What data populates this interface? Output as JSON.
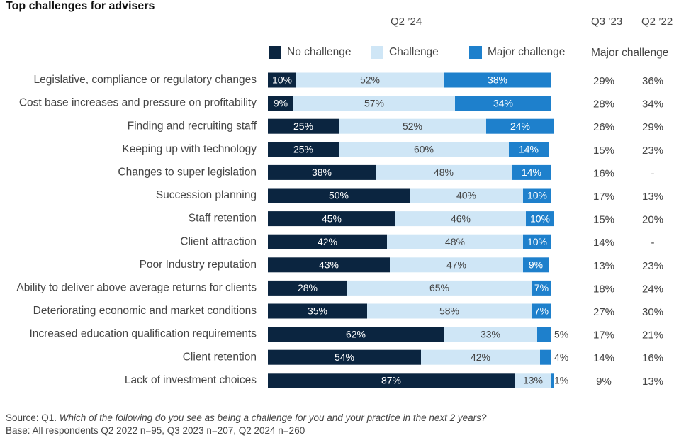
{
  "chart_data": {
    "type": "bar",
    "orientation": "horizontal",
    "stacked": true,
    "title": "Top challenges for advisers",
    "period_header": "Q2 ’24",
    "categories": [
      "Legislative, compliance or regulatory changes",
      "Cost base increases and pressure on profitability",
      "Finding and recruiting staff",
      "Keeping up with technology",
      "Changes to super legislation",
      "Succession planning",
      "Staff retention",
      "Client attraction",
      "Poor Industry reputation",
      "Ability to deliver above average returns for clients",
      "Deteriorating economic and market conditions",
      "Increased education qualification requirements",
      "Client retention",
      "Lack of investment choices"
    ],
    "series": [
      {
        "name": "No challenge",
        "color": "#0b2540",
        "values": [
          10,
          9,
          25,
          25,
          38,
          50,
          45,
          42,
          43,
          28,
          35,
          62,
          54,
          87
        ]
      },
      {
        "name": "Challenge",
        "color": "#cfe6f6",
        "values": [
          52,
          57,
          52,
          60,
          48,
          40,
          46,
          48,
          47,
          65,
          58,
          33,
          42,
          13
        ]
      },
      {
        "name": "Major challenge",
        "color": "#1e80cc",
        "values": [
          38,
          34,
          24,
          14,
          14,
          10,
          10,
          10,
          9,
          7,
          7,
          5,
          4,
          1
        ]
      }
    ],
    "labels": {
      "No challenge": [
        "10%",
        "9%",
        "25%",
        "25%",
        "38%",
        "50%",
        "45%",
        "42%",
        "43%",
        "28%",
        "35%",
        "62%",
        "54%",
        "87%"
      ],
      "Challenge": [
        "52%",
        "57%",
        "52%",
        "60%",
        "48%",
        "40%",
        "46%",
        "48%",
        "47%",
        "65%",
        "58%",
        "33%",
        "42%",
        "13%"
      ],
      "Major challenge": [
        "38%",
        "34%",
        "24%",
        "14%",
        "14%",
        "10%",
        "10%",
        "10%",
        "9%",
        "7%",
        "7%",
        "5%",
        "4%",
        "1%"
      ]
    },
    "comparison_header": "Major challenge",
    "comparison": [
      {
        "name": "Q3 ’23",
        "values": [
          "29%",
          "28%",
          "26%",
          "15%",
          "16%",
          "17%",
          "15%",
          "14%",
          "13%",
          "18%",
          "27%",
          "17%",
          "14%",
          "9%"
        ]
      },
      {
        "name": "Q2 ’22",
        "values": [
          "36%",
          "34%",
          "29%",
          "23%",
          "-",
          "13%",
          "20%",
          "-",
          "23%",
          "24%",
          "30%",
          "21%",
          "16%",
          "13%"
        ]
      }
    ],
    "xlim": [
      0,
      100
    ]
  },
  "footer": {
    "source_prefix": "Source: Q1. ",
    "source_question": "Which of the following do you see as being a challenge for you and your practice in the next 2 years?",
    "base": "Base: All respondents Q2 2022 n=95, Q3 2023 n=207, Q2 2024 n=260"
  }
}
